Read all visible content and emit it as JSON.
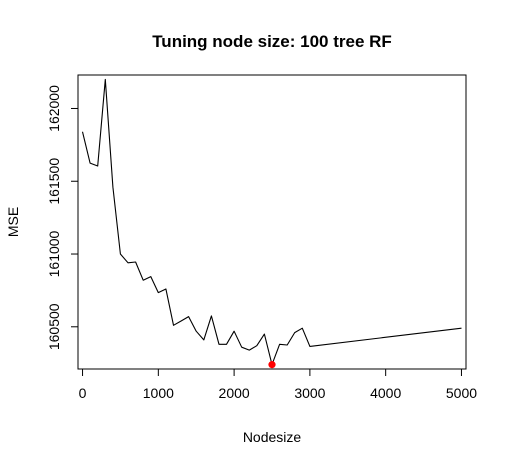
{
  "chart_data": {
    "type": "line",
    "title": "Tuning node size: 100 tree RF",
    "xlabel": "Nodesize",
    "ylabel": "MSE",
    "xlim": [
      -60,
      5060
    ],
    "ylim": [
      160210,
      162230
    ],
    "xticks": [
      0,
      1000,
      2000,
      3000,
      4000,
      5000
    ],
    "xtick_labels": [
      "0",
      "1000",
      "2000",
      "3000",
      "4000",
      "5000"
    ],
    "yticks": [
      160500,
      161000,
      161500,
      162000
    ],
    "ytick_labels": [
      "160500",
      "161000",
      "161500",
      "162000"
    ],
    "grid": false,
    "series": [
      {
        "color": "#000000",
        "x": [
          0,
          100,
          200,
          300,
          400,
          500,
          600,
          700,
          800,
          900,
          1000,
          1100,
          1200,
          1300,
          1400,
          1500,
          1600,
          1700,
          1800,
          1900,
          2000,
          2100,
          2200,
          2300,
          2400,
          2500,
          2600,
          2700,
          2800,
          2900,
          3000,
          5000
        ],
        "y": [
          161840,
          161625,
          161605,
          162200,
          161460,
          161000,
          160940,
          160945,
          160820,
          160845,
          160735,
          160760,
          160510,
          160540,
          160570,
          160470,
          160410,
          160575,
          160380,
          160380,
          160470,
          160360,
          160340,
          160370,
          160450,
          160240,
          160380,
          160375,
          160460,
          160490,
          160365,
          160490
        ]
      }
    ],
    "highlight": {
      "x": 2500,
      "y": 160240,
      "color": "#ff0000"
    }
  }
}
